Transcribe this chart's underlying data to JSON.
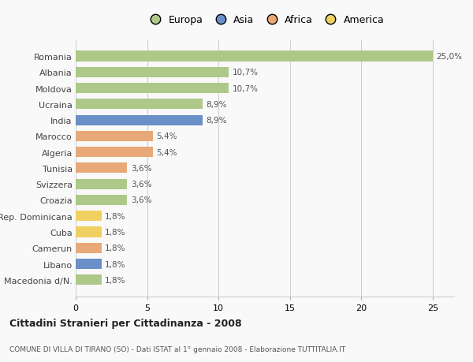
{
  "countries": [
    "Romania",
    "Albania",
    "Moldova",
    "Ucraina",
    "India",
    "Marocco",
    "Algeria",
    "Tunisia",
    "Svizzera",
    "Croazia",
    "Rep. Dominicana",
    "Cuba",
    "Camerun",
    "Libano",
    "Macedonia d/N."
  ],
  "values": [
    25.0,
    10.7,
    10.7,
    8.9,
    8.9,
    5.4,
    5.4,
    3.6,
    3.6,
    3.6,
    1.8,
    1.8,
    1.8,
    1.8,
    1.8
  ],
  "labels": [
    "25,0%",
    "10,7%",
    "10,7%",
    "8,9%",
    "8,9%",
    "5,4%",
    "5,4%",
    "3,6%",
    "3,6%",
    "3,6%",
    "1,8%",
    "1,8%",
    "1,8%",
    "1,8%",
    "1,8%"
  ],
  "continents": [
    "Europa",
    "Europa",
    "Europa",
    "Europa",
    "Asia",
    "Africa",
    "Africa",
    "Africa",
    "Europa",
    "Europa",
    "America",
    "America",
    "Africa",
    "Asia",
    "Europa"
  ],
  "colors": {
    "Europa": "#adc888",
    "Asia": "#6b8fc9",
    "Africa": "#e8a878",
    "America": "#f0d060"
  },
  "legend_order": [
    "Europa",
    "Asia",
    "Africa",
    "America"
  ],
  "title1": "Cittadini Stranieri per Cittadinanza - 2008",
  "title2": "COMUNE DI VILLA DI TIRANO (SO) - Dati ISTAT al 1° gennaio 2008 - Elaborazione TUTTITALIA.IT",
  "xlim": [
    0,
    26.5
  ],
  "xticks": [
    0,
    5,
    10,
    15,
    20,
    25
  ],
  "bar_height": 0.65,
  "background_color": "#f9f9f9",
  "grid_color": "#cccccc"
}
